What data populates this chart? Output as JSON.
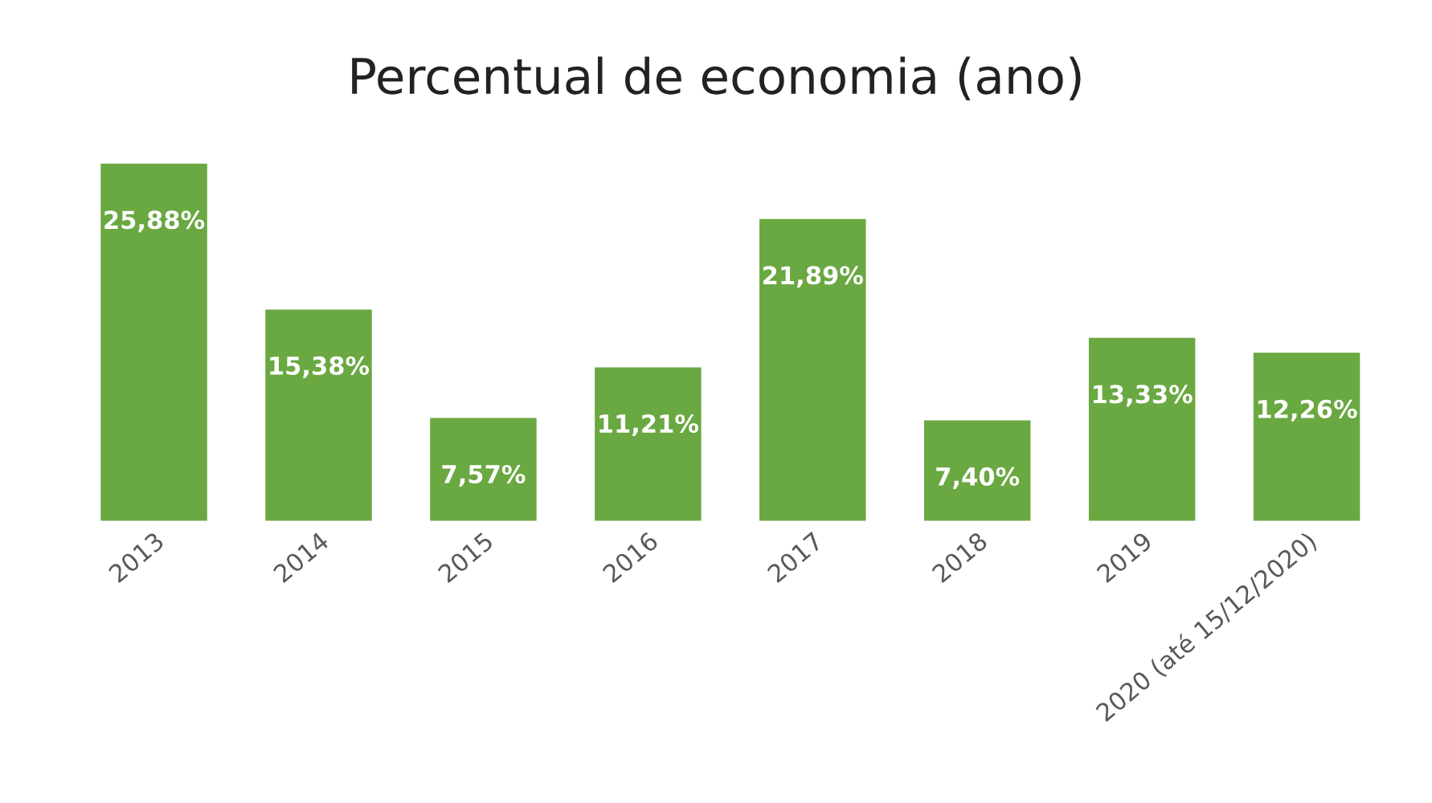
{
  "chart_data": {
    "type": "bar",
    "title": "Percentual de economia (ano)",
    "categories": [
      "2013",
      "2014",
      "2015",
      "2016",
      "2017",
      "2018",
      "2019",
      "2020 (até 15/12/2020)"
    ],
    "values": [
      25.88,
      15.38,
      7.57,
      11.21,
      21.89,
      7.4,
      13.33,
      12.26
    ],
    "value_labels": [
      "25,88%",
      "15,38%",
      "7,57%",
      "11,21%",
      "21,89%",
      "7,40%",
      "13,33%",
      "12,26%"
    ],
    "color": "#6aa842",
    "grid": false,
    "legend": false
  }
}
